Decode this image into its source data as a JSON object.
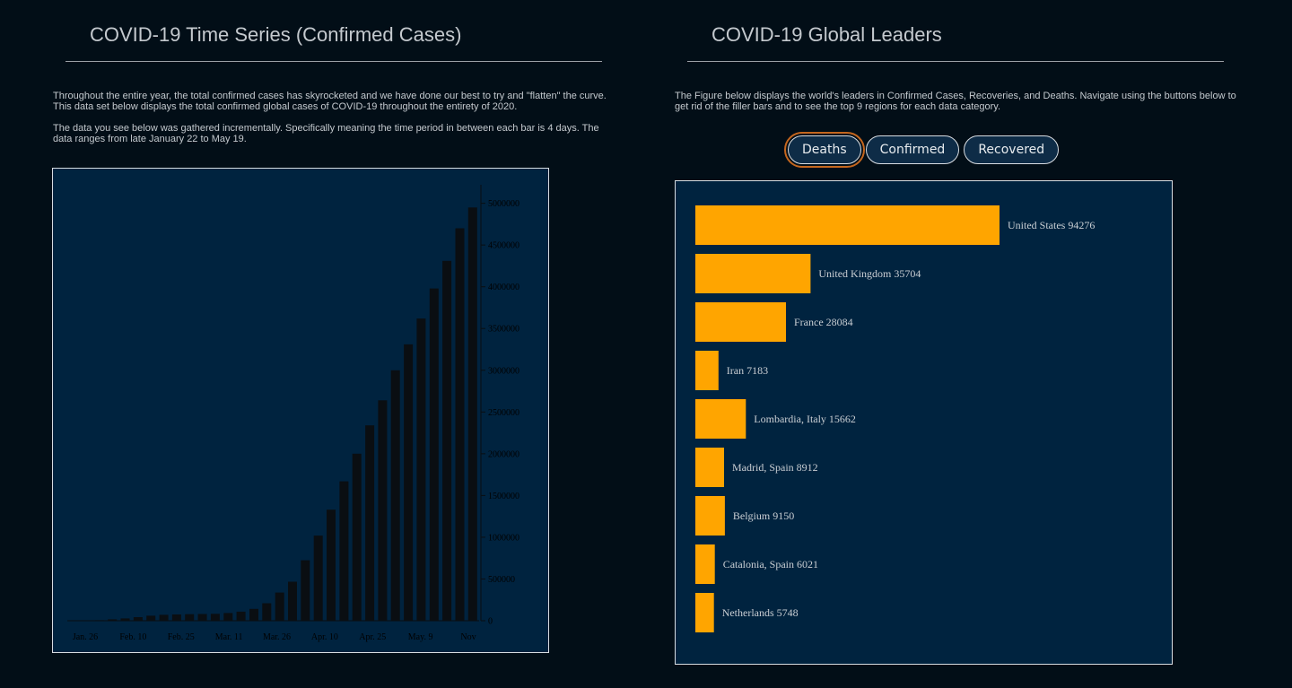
{
  "left": {
    "title": "COVID-19 Time Series (Confirmed Cases)",
    "paragraph1": "Throughout the entire year, the total confirmed cases has skyrocketed and we have done our best to try and \"flatten\" the curve. This data set below displays the total confirmed global cases of COVID-19 throughout the entirety of 2020.",
    "paragraph2": "The data you see below was gathered incrementally. Specifically meaning the time period in between each bar is 4 days. The data ranges from late January 22 to May 19."
  },
  "right": {
    "title": "COVID-19 Global Leaders",
    "paragraph1": "The Figure below displays the world's leaders in Confirmed Cases, Recoveries, and Deaths. Navigate using the buttons below to get rid of the filler bars and to see the top 9 regions for each data category.",
    "buttons": {
      "deaths": "Deaths",
      "confirmed": "Confirmed",
      "recovered": "Recovered"
    },
    "active_button": "Deaths"
  },
  "colors": {
    "background": "#020e17",
    "chart_background": "#00233f",
    "time_series_bar": "#0a0e12",
    "leader_bar": "#ffa500",
    "active_outline": "#c4661e"
  },
  "chart_data": [
    {
      "type": "bar",
      "title": "",
      "xlabel": "",
      "ylabel": "",
      "x_tick_labels": [
        "Jan. 26",
        "Feb. 10",
        "Feb. 25",
        "Mar. 11",
        "Mar. 26",
        "Apr. 10",
        "Apr. 25",
        "May. 9",
        "Nov"
      ],
      "y_tick_labels": [
        "0",
        "500000",
        "1000000",
        "1500000",
        "2000000",
        "2500000",
        "3000000",
        "3500000",
        "4000000",
        "4500000",
        "5000000"
      ],
      "ylim": [
        0,
        5200000
      ],
      "y_axis_side": "right",
      "values": [
        555,
        2000,
        6100,
        17400,
        28000,
        43000,
        60000,
        71000,
        75600,
        78600,
        80400,
        83000,
        92000,
        108000,
        142000,
        210000,
        337000,
        467000,
        724000,
        1020000,
        1330000,
        1670000,
        2000000,
        2340000,
        2640000,
        3000000,
        3310000,
        3620000,
        3980000,
        4310000,
        4700000,
        4950000
      ],
      "grid": false
    },
    {
      "type": "bar",
      "orientation": "horizontal",
      "title": "",
      "categories": [
        "United States",
        "United Kingdom",
        "France",
        "Iran",
        "Lombardia, Italy",
        "Madrid, Spain",
        "Belgium",
        "Catalonia, Spain",
        "Netherlands"
      ],
      "values": [
        94276,
        35704,
        28084,
        7183,
        15662,
        8912,
        9150,
        6021,
        5748
      ],
      "labels": [
        "United States 94276",
        "United Kingdom 35704",
        "France 28084",
        "Iran 7183",
        "Lombardia, Italy 15662",
        "Madrid, Spain 8912",
        "Belgium 9150",
        "Catalonia, Spain 6021",
        "Netherlands 5748"
      ],
      "grid": false
    }
  ]
}
